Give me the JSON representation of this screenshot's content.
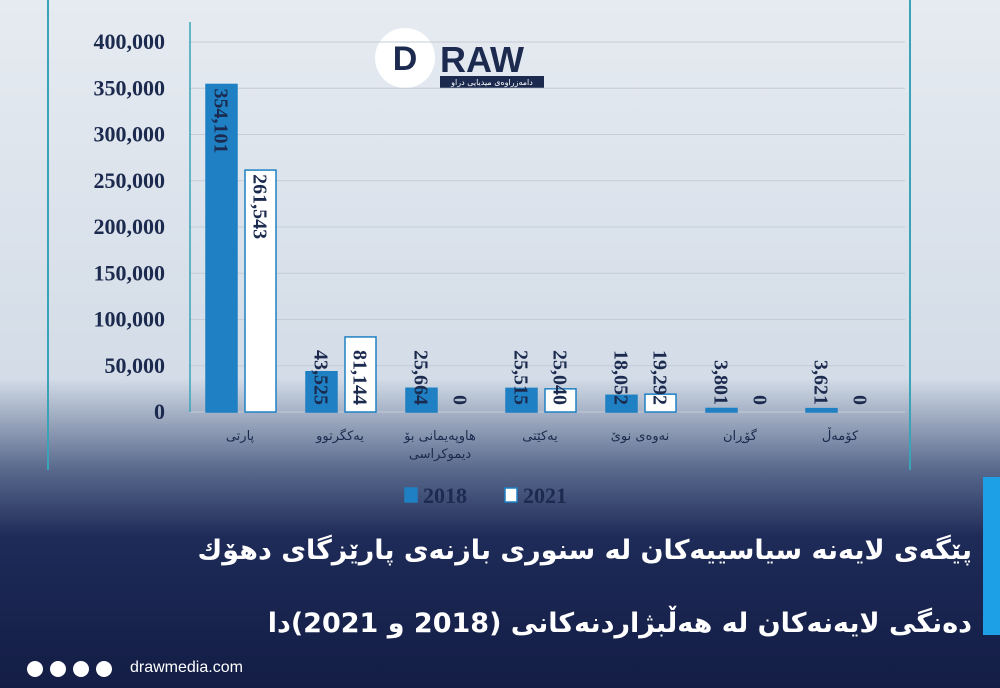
{
  "chart_data": {
    "type": "bar",
    "categories": [
      "پارتی",
      "یەکگرتوو",
      "هاوپەیمانی بۆ دیموکراسی",
      "یەکێتی",
      "نەوەی نوێ",
      "گۆڕان",
      "کۆمەڵ"
    ],
    "series": [
      {
        "name": "2018",
        "color": "#1f80c3",
        "values": [
          354101,
          43525,
          25664,
          25515,
          18052,
          3801,
          3621
        ],
        "value_labels": [
          "354,101",
          "43,525",
          "25,664",
          "25,515",
          "18,052",
          "3,801",
          "3,621"
        ]
      },
      {
        "name": "2021",
        "color": "#ffffff",
        "values": [
          261543,
          81144,
          0,
          25040,
          19292,
          0,
          0
        ],
        "value_labels": [
          "261,543",
          "81,144",
          "0",
          "25,040",
          "19,292",
          "0",
          "0"
        ]
      }
    ],
    "ylim": [
      0,
      400000
    ],
    "yticks": [
      0,
      {
        "value": 50000,
        "label": "50,000"
      },
      {
        "value": 100000,
        "label": "100,000"
      },
      {
        "value": 150000,
        "label": "150,000"
      },
      {
        "value": 200000,
        "label": "200,000"
      },
      {
        "value": 250000,
        "label": "250,000"
      },
      {
        "value": 300000,
        "label": "300,000"
      },
      {
        "value": 350000,
        "label": "350,000"
      },
      {
        "value": 400000,
        "label": "400,000"
      }
    ],
    "grid": true
  },
  "logo": {
    "mark": "D",
    "word": "RAW",
    "tagline": "دامەزراوەی میدیایی دراو"
  },
  "headline": [
    "پێگەی لایەنە سیاسییەکان لە سنوری بازنەی پارێزگای دهۆك",
    "دەنگی لایەنەکان لە هەڵبژاردنەکانی (2018 و 2021)دا"
  ],
  "footer": {
    "site": "drawmedia.com"
  }
}
